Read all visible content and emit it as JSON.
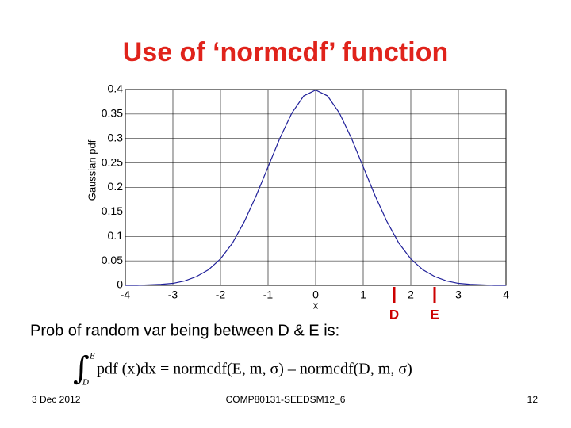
{
  "chart_data": {
    "type": "line",
    "title": "Use of ‘normcdf’ function",
    "ylabel": "Gaussian pdf",
    "xlabel": "x",
    "x": [
      -4,
      -3.75,
      -3.5,
      -3.25,
      -3,
      -2.75,
      -2.5,
      -2.25,
      -2,
      -1.75,
      -1.5,
      -1.25,
      -1,
      -0.75,
      -0.5,
      -0.25,
      0,
      0.25,
      0.5,
      0.75,
      1,
      1.25,
      1.5,
      1.75,
      2,
      2.25,
      2.5,
      2.75,
      3,
      3.25,
      3.5,
      3.75,
      4
    ],
    "series": [
      {
        "color": "#1f1f99",
        "values": [
          0.0,
          0.0,
          0.001,
          0.002,
          0.004,
          0.009,
          0.018,
          0.032,
          0.054,
          0.086,
          0.13,
          0.183,
          0.242,
          0.301,
          0.352,
          0.387,
          0.399,
          0.387,
          0.352,
          0.301,
          0.242,
          0.183,
          0.13,
          0.086,
          0.054,
          0.032,
          0.018,
          0.009,
          0.004,
          0.002,
          0.001,
          0.0,
          0.0
        ]
      }
    ],
    "xlim": [
      -4,
      4
    ],
    "xticks": [
      -4,
      -3,
      -2,
      -1,
      0,
      1,
      2,
      3,
      4
    ],
    "ylim": [
      0,
      0.4
    ],
    "yticks": [
      0,
      0.05,
      0.1,
      0.15,
      0.2,
      0.25,
      0.3,
      0.35,
      0.4
    ],
    "grid": true,
    "markers": [
      {
        "label": "D",
        "x": 1.65,
        "color": "#cc0000"
      },
      {
        "label": "E",
        "x": 2.5,
        "color": "#cc0000"
      }
    ]
  },
  "body": {
    "text": "Prob of random var being between D & E is:",
    "integral_upper": "E",
    "integral_lower": "D",
    "formula": "pdf (x)dx = normcdf(E, m, σ) – normcdf(D, m, σ)"
  },
  "footer": {
    "date": "3 Dec 2012",
    "course": "COMP80131-SEEDSM12_6",
    "page": "12"
  }
}
